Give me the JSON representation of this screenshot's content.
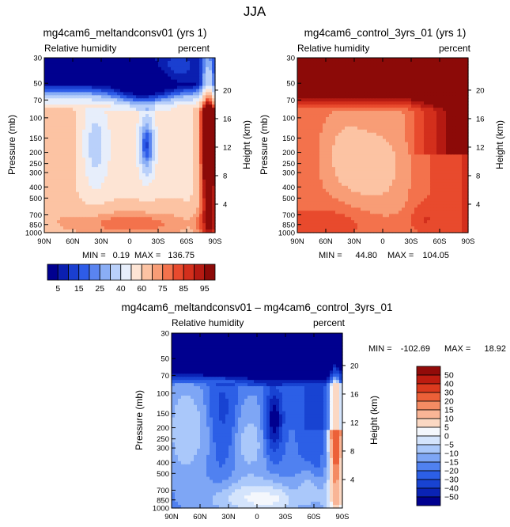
{
  "figure": {
    "title": "JJA"
  },
  "colors": {
    "positive_scale": [
      "#00008f",
      "#0a1fb0",
      "#1a3fd0",
      "#2e5ce8",
      "#5a84f0",
      "#8aaef5",
      "#b9d0fa",
      "#e7eefb",
      "#fde4d4",
      "#fcc3a3",
      "#f89d76",
      "#f3724c",
      "#e84a2d",
      "#d32f1c",
      "#b51a12",
      "#8c0a08"
    ],
    "diff_scale": [
      "#00008f",
      "#0a23b5",
      "#1843d2",
      "#2c5fe6",
      "#5081f0",
      "#7ea6f5",
      "#aac8fa",
      "#d4e4fc",
      "#f4f7fc",
      "#fbd8c3",
      "#f9b596",
      "#f48b63",
      "#ec6038",
      "#db3a1e",
      "#bd1c10",
      "#920b09"
    ]
  },
  "chart_data": [
    {
      "id": "panel_top_left",
      "type": "heatmap",
      "title": "mg4cam6_meltandconsv01 (yrs 1)",
      "variable_label": "Relative humidity",
      "units_label": "percent",
      "xlabel": "",
      "ylabel": "Pressure (mb)",
      "ylabel_right": "Height (km)",
      "x_tick_labels": [
        "90N",
        "60N",
        "30N",
        "0",
        "30S",
        "60S",
        "90S"
      ],
      "x_tick_values": [
        90,
        60,
        30,
        0,
        -30,
        -60,
        -90
      ],
      "y_tick_labels": [
        "30",
        "50",
        "70",
        "100",
        "150",
        "200",
        "250",
        "300",
        "400",
        "500",
        "700",
        "850",
        "1000"
      ],
      "y_tick_values": [
        30,
        50,
        70,
        100,
        150,
        200,
        250,
        300,
        400,
        500,
        700,
        850,
        1000
      ],
      "height_tick_labels": [
        "20",
        "16",
        "12",
        "8",
        "4"
      ],
      "height_tick_values": [
        20,
        16,
        12,
        8,
        4
      ],
      "min_label": "MIN =",
      "min_value": "0.19",
      "max_label": "MAX =",
      "max_value": "136.75",
      "scale": "positive",
      "field": "meltandconsv"
    },
    {
      "id": "panel_top_right",
      "type": "heatmap",
      "title": "mg4cam6_control_3yrs_01 (yrs 1)",
      "variable_label": "Relative humidity",
      "units_label": "percent",
      "xlabel": "",
      "ylabel": "Pressure (mb)",
      "ylabel_right": "Height (km)",
      "x_tick_labels": [
        "90N",
        "60N",
        "30N",
        "0",
        "30S",
        "60S",
        "90S"
      ],
      "x_tick_values": [
        90,
        60,
        30,
        0,
        -30,
        -60,
        -90
      ],
      "y_tick_labels": [
        "30",
        "50",
        "70",
        "100",
        "150",
        "200",
        "250",
        "300",
        "400",
        "500",
        "700",
        "850",
        "1000"
      ],
      "y_tick_values": [
        30,
        50,
        70,
        100,
        150,
        200,
        250,
        300,
        400,
        500,
        700,
        850,
        1000
      ],
      "height_tick_labels": [
        "20",
        "16",
        "12",
        "8",
        "4"
      ],
      "height_tick_values": [
        20,
        16,
        12,
        8,
        4
      ],
      "min_label": "MIN =",
      "min_value": "44.80",
      "max_label": "MAX =",
      "max_value": "104.05",
      "scale": "positive",
      "field": "control"
    },
    {
      "id": "panel_bottom",
      "type": "heatmap",
      "title": "mg4cam6_meltandconsv01 – mg4cam6_control_3yrs_01",
      "variable_label": "Relative humidity",
      "units_label": "percent",
      "xlabel": "",
      "ylabel": "Pressure (mb)",
      "ylabel_right": "Height (km)",
      "x_tick_labels": [
        "90N",
        "60N",
        "30N",
        "0",
        "30S",
        "60S",
        "90S"
      ],
      "x_tick_values": [
        90,
        60,
        30,
        0,
        -30,
        -60,
        -90
      ],
      "y_tick_labels": [
        "30",
        "50",
        "70",
        "100",
        "150",
        "200",
        "250",
        "300",
        "400",
        "500",
        "700",
        "850",
        "1000"
      ],
      "y_tick_values": [
        30,
        50,
        70,
        100,
        150,
        200,
        250,
        300,
        400,
        500,
        700,
        850,
        1000
      ],
      "height_tick_labels": [
        "20",
        "16",
        "12",
        "8",
        "4"
      ],
      "height_tick_values": [
        20,
        16,
        12,
        8,
        4
      ],
      "min_label": "MIN =",
      "min_value": "-102.69",
      "max_label": "MAX =",
      "max_value": "18.92",
      "scale": "diff",
      "field": "difference"
    },
    {
      "id": "colorbar_positive",
      "type": "colorbar",
      "orientation": "horizontal",
      "levels": [
        5,
        10,
        15,
        20,
        25,
        30,
        40,
        50,
        60,
        70,
        75,
        80,
        85,
        90,
        95
      ],
      "labels": [
        "5",
        "15",
        "25",
        "40",
        "60",
        "75",
        "85",
        "95"
      ]
    },
    {
      "id": "colorbar_diff",
      "type": "colorbar",
      "orientation": "vertical",
      "levels": [
        -50,
        -40,
        -30,
        -20,
        -15,
        -10,
        -5,
        0,
        5,
        10,
        15,
        20,
        30,
        40,
        50
      ],
      "labels": [
        "50",
        "40",
        "30",
        "20",
        "15",
        "10",
        "5",
        "0",
        "−5",
        "−10",
        "−15",
        "−20",
        "−30",
        "−40",
        "−50"
      ]
    }
  ]
}
